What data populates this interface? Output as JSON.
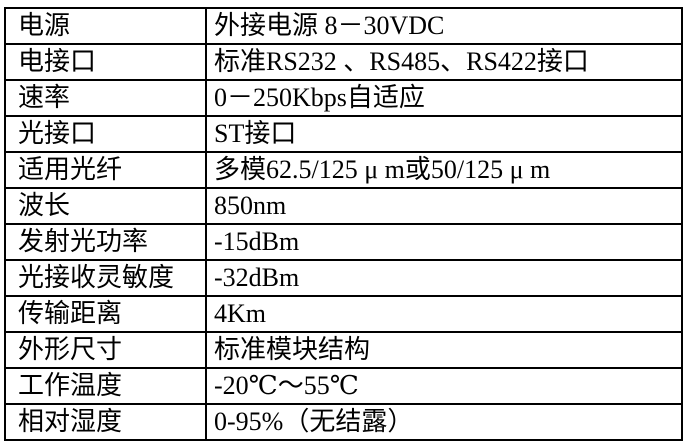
{
  "spec_table": {
    "border_color": "#000000",
    "background_color": "#ffffff",
    "text_color": "#000000",
    "rows": [
      {
        "label": "电源",
        "value": "外接电源 8－30VDC"
      },
      {
        "label": "电接口",
        "value": "标准RS232 、RS485、RS422接口"
      },
      {
        "label": "速率",
        "value": "0－250Kbps自适应"
      },
      {
        "label": "光接口",
        "value": "ST接口"
      },
      {
        "label": "适用光纤",
        "value": "多模62.5/125 μ m或50/125 μ m"
      },
      {
        "label": "波长",
        "value": "850nm"
      },
      {
        "label": "发射光功率",
        "value": "-15dBm"
      },
      {
        "label": "光接收灵敏度",
        "value": "-32dBm"
      },
      {
        "label": "传输距离",
        "value": "4Km"
      },
      {
        "label": "外形尺寸",
        "value": "标准模块结构"
      },
      {
        "label": "工作温度",
        "value": "-20℃～55℃"
      },
      {
        "label": "相对湿度",
        "value": "0-95%（无结露）"
      }
    ]
  }
}
